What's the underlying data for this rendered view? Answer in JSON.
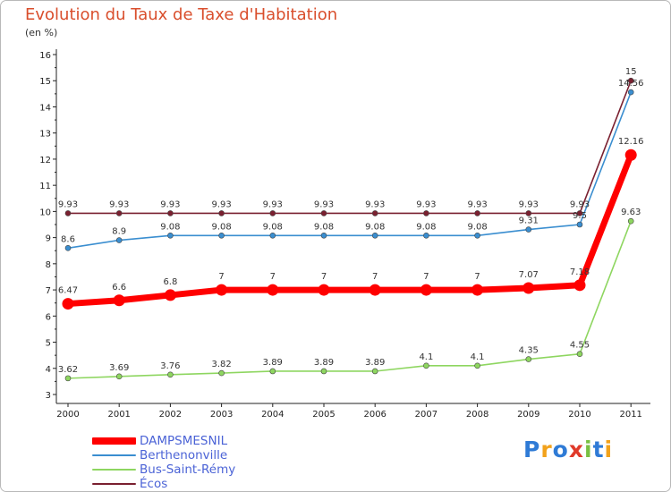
{
  "header": {
    "title": "Evolution du Taux de Taxe d'Habitation",
    "unit": "(en %)"
  },
  "chart_data": {
    "type": "line",
    "title": "Evolution du Taux de Taxe d'Habitation",
    "subtitle": "(en %)",
    "xlabel": "",
    "ylabel": "",
    "x": [
      "2000",
      "2001",
      "2002",
      "2003",
      "2004",
      "2005",
      "2006",
      "2007",
      "2008",
      "2009",
      "2010",
      "2011"
    ],
    "ylim": [
      3,
      16
    ],
    "yticks": [
      3,
      4,
      5,
      6,
      7,
      8,
      9,
      10,
      11,
      12,
      13,
      14,
      15,
      16
    ],
    "grid": false,
    "legend_position": "bottom-left",
    "series": [
      {
        "name": "DAMPSMESNIL",
        "color": "#ff0000",
        "values": [
          6.47,
          6.6,
          6.8,
          7,
          7,
          7,
          7,
          7,
          7,
          7.07,
          7.18,
          12.16
        ],
        "labels": [
          "6.47",
          "6.6",
          "6.8",
          "7",
          "7",
          "7",
          "7",
          "7",
          "7",
          "7.07",
          "7.18",
          "12.16"
        ]
      },
      {
        "name": "Berthenonville",
        "color": "#3a8ed0",
        "values": [
          8.6,
          8.9,
          9.08,
          9.08,
          9.08,
          9.08,
          9.08,
          9.08,
          9.08,
          9.31,
          9.5,
          14.56
        ],
        "labels": [
          "8.6",
          "8.9",
          "9.08",
          "9.08",
          "9.08",
          "9.08",
          "9.08",
          "9.08",
          "9.08",
          "9.31",
          "9.5",
          "14.56"
        ]
      },
      {
        "name": "Bus-Saint-Rémy",
        "color": "#8ed660",
        "values": [
          3.62,
          3.69,
          3.76,
          3.82,
          3.89,
          3.89,
          3.89,
          4.1,
          4.1,
          4.35,
          4.55,
          9.63
        ],
        "labels": [
          "3.62",
          "3.69",
          "3.76",
          "3.82",
          "3.89",
          "3.89",
          "3.89",
          "4.1",
          "4.1",
          "4.35",
          "4.55",
          "9.63"
        ]
      },
      {
        "name": "Écos",
        "color": "#7a2030",
        "values": [
          9.93,
          9.93,
          9.93,
          9.93,
          9.93,
          9.93,
          9.93,
          9.93,
          9.93,
          9.93,
          9.93,
          15
        ],
        "labels": [
          "9.93",
          "9.93",
          "9.93",
          "9.93",
          "9.93",
          "9.93",
          "9.93",
          "9.93",
          "9.93",
          "9.93",
          "9.93",
          "15"
        ]
      }
    ]
  },
  "logo": {
    "text": "Proxiti",
    "letters": [
      "P",
      "r",
      "o",
      "x",
      "i",
      "t",
      "i"
    ],
    "colors": [
      "#2f7bd6",
      "#f2a21b",
      "#2f7bd6",
      "#e03a2a",
      "#7ac043",
      "#2f7bd6",
      "#f2a21b"
    ]
  }
}
